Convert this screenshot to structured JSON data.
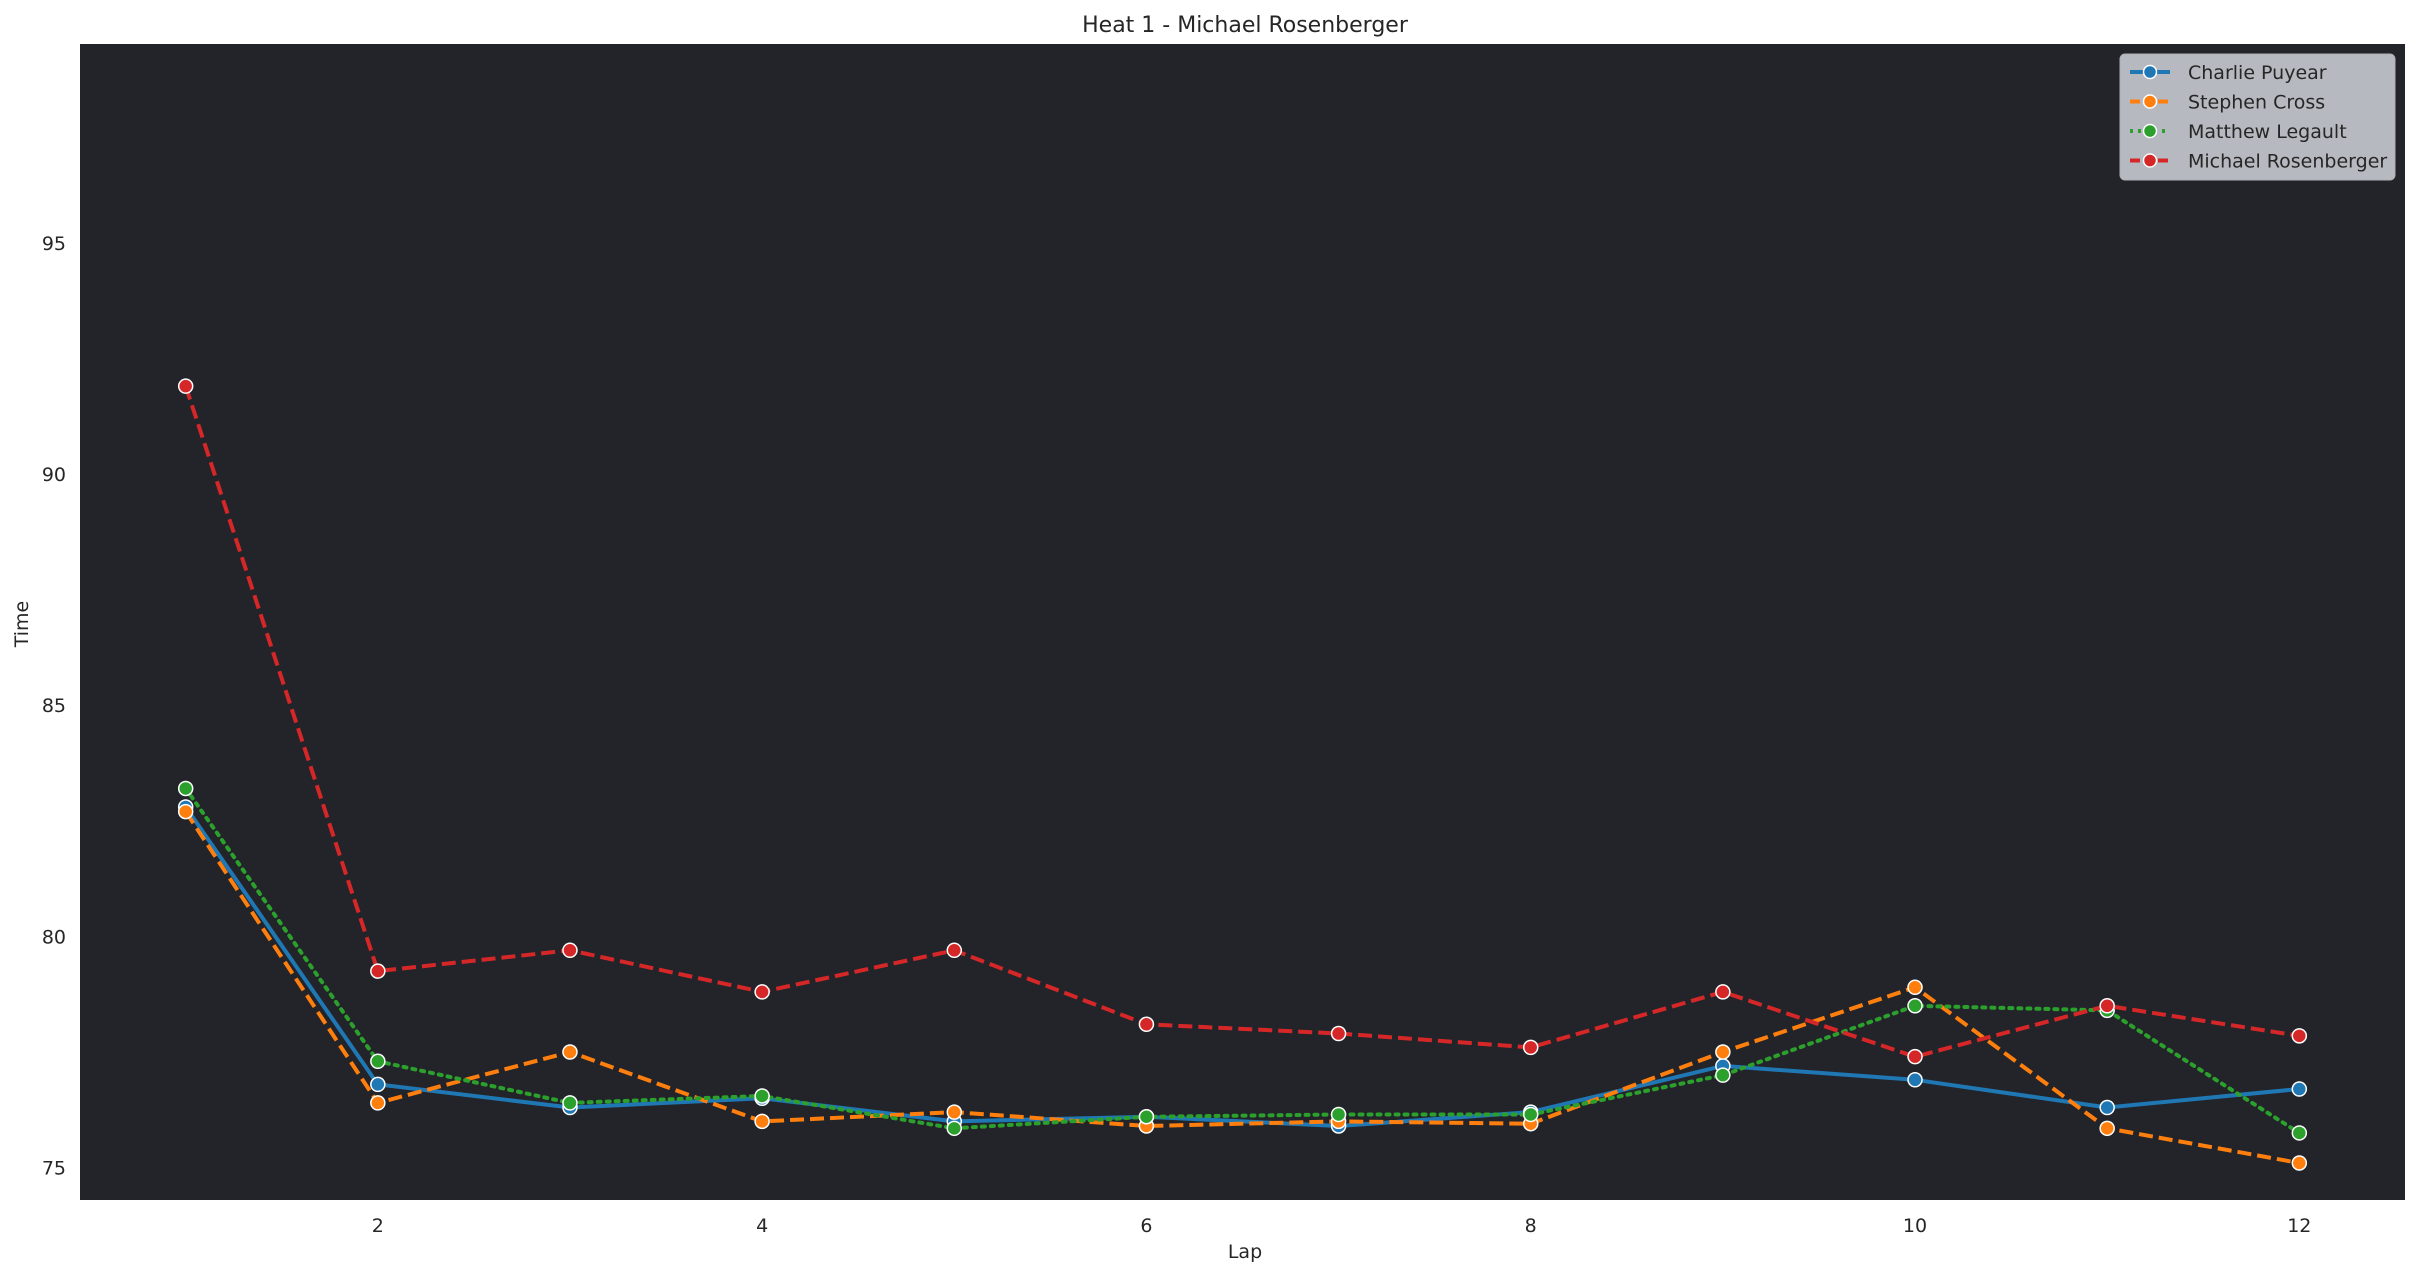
{
  "chart_data": {
    "type": "line",
    "title": "Heat 1 - Michael Rosenberger",
    "xlabel": "Lap",
    "ylabel": "Time",
    "x": [
      1,
      2,
      3,
      4,
      5,
      6,
      7,
      8,
      9,
      10,
      11,
      12
    ],
    "xlim": [
      0.45,
      12.55
    ],
    "ylim": [
      74.3,
      99.3
    ],
    "xticks": [
      2,
      4,
      6,
      8,
      10,
      12
    ],
    "yticks": [
      75,
      80,
      85,
      90,
      95
    ],
    "grid": false,
    "legend_position": "top-right",
    "plot_background": "#222429",
    "legend_background": "#c0c2c8",
    "series": [
      {
        "name": "Charlie Puyear",
        "color": "#1f77b4",
        "style": "solid",
        "values": [
          82.8,
          76.8,
          76.3,
          76.5,
          76.0,
          76.1,
          75.9,
          76.2,
          77.2,
          76.9,
          76.3,
          76.7
        ]
      },
      {
        "name": "Stephen Cross",
        "color": "#ff7f0e",
        "style": "dashed",
        "values": [
          82.7,
          76.4,
          77.5,
          76.0,
          76.2,
          75.9,
          76.0,
          75.95,
          77.5,
          78.9,
          75.85,
          75.1
        ]
      },
      {
        "name": "Matthew Legault",
        "color": "#2ca02c",
        "style": "dotted",
        "values": [
          83.2,
          77.3,
          76.4,
          76.55,
          75.85,
          76.1,
          76.15,
          76.15,
          77.0,
          78.5,
          78.4,
          75.75
        ]
      },
      {
        "name": "Michael Rosenberger",
        "color": "#d62728",
        "style": "dashed",
        "values": [
          91.9,
          79.25,
          79.7,
          78.8,
          79.7,
          78.1,
          77.9,
          77.6,
          78.8,
          77.4,
          78.5,
          77.85
        ]
      }
    ]
  }
}
